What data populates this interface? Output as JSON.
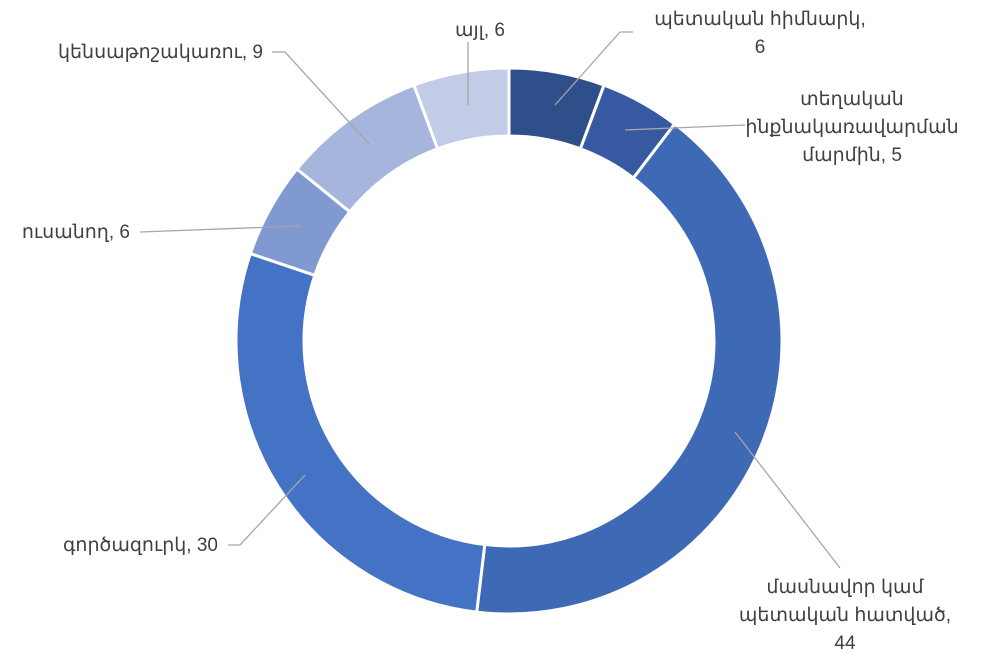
{
  "chart_data": {
    "type": "donut",
    "categories": [
      "պետական հիմնարկ",
      "տեղական ինքնակառավարման մարմին",
      "մասնավոր կամ պետական հատված",
      "գործազուրկ",
      "ուսանող",
      "կենսաթոշակառու",
      "այլ"
    ],
    "values": [
      6,
      5,
      44,
      30,
      6,
      9,
      6
    ],
    "colors": [
      "#2f4f8b",
      "#3659a2",
      "#3d69b5",
      "#4472c4",
      "#8199d1",
      "#a6b5db",
      "#c2cce6"
    ]
  }
}
